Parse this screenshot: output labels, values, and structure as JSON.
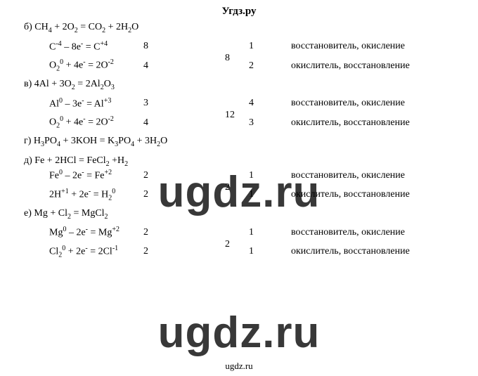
{
  "header": "Угдз.ру",
  "footer": "ugdz.ru",
  "watermark": "ugdz.ru",
  "sections": {
    "b": {
      "label": "б) ",
      "equation_html": "CH<span class='sub'>4</span> + 2O<span class='sub'>2</span> = CO<span class='sub'>2</span> + 2H<span class='sub'>2</span>O",
      "half1_html": "C<span class='sup'>-4</span> – 8e<span class='sup'>-</span> = C<span class='sup'>+4</span>",
      "half1_c1": "8",
      "half1_c2": "1",
      "half1_role": "восстановитель, окисление",
      "lcm": "8",
      "half2_html": "O<span class='sub'>2</span><span class='sup'>0</span> + 4e<span class='sup'>-</span> = 2O<span class='sup'>-2</span>",
      "half2_c1": "4",
      "half2_c2": "2",
      "half2_role": "окислитель, восстановление"
    },
    "v": {
      "label": "в) ",
      "equation_html": "4Al + 3O<span class='sub'>2</span> = 2Al<span class='sub'>2</span>O<span class='sub'>3</span>",
      "half1_html": "Al<span class='sup'>0</span> – 3e<span class='sup'>-</span> = Al<span class='sup'>+3</span>",
      "half1_c1": "3",
      "half1_c2": "4",
      "half1_role": "восстановитель, окисление",
      "lcm": "12",
      "half2_html": "O<span class='sub'>2</span><span class='sup'>0</span> + 4e<span class='sup'>-</span> = 2O<span class='sup'>-2</span>",
      "half2_c1": "4",
      "half2_c2": "3",
      "half2_role": "окислитель, восстановление"
    },
    "g": {
      "label": "г) ",
      "equation_html": "H<span class='sub'>3</span>PO<span class='sub'>4</span> + 3KOH = K<span class='sub'>3</span>PO<span class='sub'>4</span> + 3H<span class='sub'>2</span>O"
    },
    "d": {
      "label": "д) ",
      "equation_html": "Fe + 2HCl = FeCl<span class='sub'>2</span> +H<span class='sub'>2</span>",
      "half1_label": "",
      "half1_html": "Fe<span class='sup'>0</span> – 2e<span class='sup'>-</span> = Fe<span class='sup'>+2</span>",
      "half1_c1": "2",
      "half1_c2": "1",
      "half1_role": "восстановитель, окисление",
      "lcm": "2",
      "half2_html": "2H<span class='sup'>+1</span> + 2e<span class='sup'>-</span> = H<span class='sub'>2</span><span class='sup'>0</span>",
      "half2_c1": "2",
      "half2_c2": "1",
      "half2_role": "окислитель, восстановление"
    },
    "e": {
      "label": "е) ",
      "equation_html": "Mg + Cl<span class='sub'>2</span> = MgCl<span class='sub'>2</span>",
      "half1_html": "Mg<span class='sup'>0</span> – 2e<span class='sup'>-</span> = Mg<span class='sup'>+2</span>",
      "half1_c1": "2",
      "half1_c2": "1",
      "half1_role": "восстановитель, окисление",
      "lcm": "2",
      "half2_html": "Cl<span class='sub'>2</span><span class='sup'>0</span> + 2e<span class='sup'>-</span> = 2Cl<span class='sup'>-1</span>",
      "half2_c1": "2",
      "half2_c2": "1",
      "half2_role": "окислитель, восстановление"
    }
  }
}
